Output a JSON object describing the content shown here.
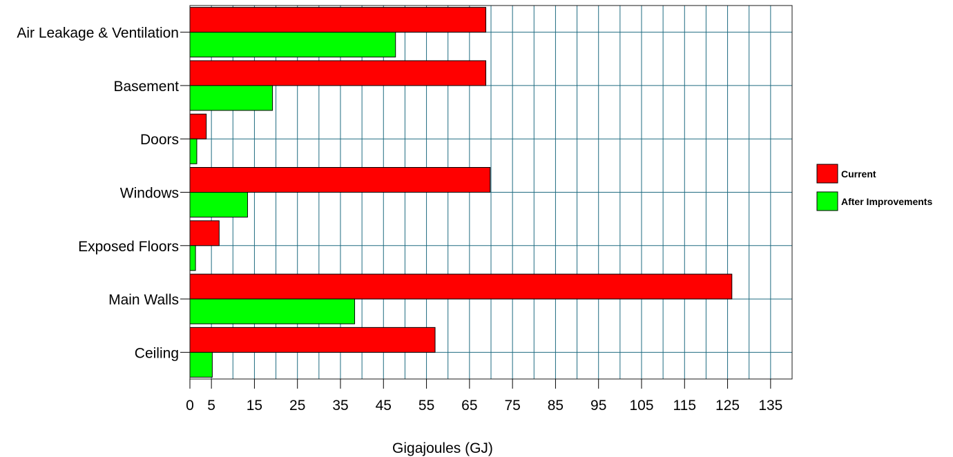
{
  "chart_data": {
    "type": "bar",
    "orientation": "horizontal",
    "categories": [
      "Air Leakage & Ventilation",
      "Basement",
      "Doors",
      "Windows",
      "Exposed Floors",
      "Main Walls",
      "Ceiling"
    ],
    "series": [
      {
        "name": "Current",
        "color": "#ff0000",
        "values": [
          68.8,
          68.8,
          3.8,
          69.8,
          6.8,
          126,
          57
        ]
      },
      {
        "name": "After Improvements",
        "color": "#00ff00",
        "values": [
          47.8,
          19.2,
          1.6,
          13.4,
          1.3,
          38.3,
          5.2
        ]
      }
    ],
    "title": "",
    "xlabel": "Gigajoules (GJ)",
    "ylabel": "",
    "xlim": [
      0,
      140
    ],
    "x_ticks": [
      "0",
      "5",
      "15",
      "25",
      "35",
      "45",
      "55",
      "65",
      "75",
      "85",
      "95",
      "105",
      "115",
      "125",
      "135"
    ],
    "x_tick_values": [
      0,
      5,
      15,
      25,
      35,
      45,
      55,
      65,
      75,
      85,
      95,
      105,
      115,
      125,
      135
    ],
    "grid": true,
    "grid_color": "#1f6b80",
    "legend_position": "right"
  }
}
